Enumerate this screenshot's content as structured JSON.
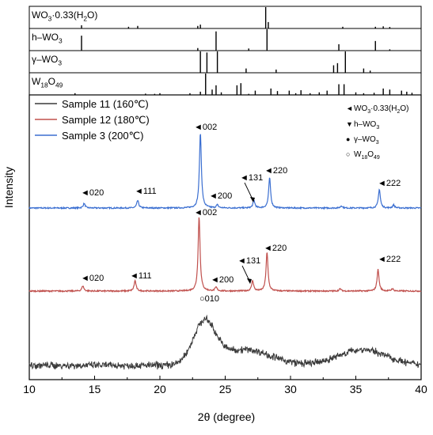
{
  "chart_data": {
    "type": "line",
    "xlabel": "2θ (degree)",
    "ylabel": "Intensity",
    "xlim": [
      10,
      40
    ],
    "x_ticks": [
      "10",
      "15",
      "20",
      "25",
      "30",
      "35",
      "40"
    ],
    "y_ticks_shown": false,
    "reference_panels": [
      {
        "label": "WO3·0.33(H2O)",
        "label_main": "WO",
        "label_sub1": "3",
        "label_tail": "·0.33(H",
        "label_sub2": "2",
        "label_end": "O)",
        "peaks": [
          [
            14.0,
            0.15
          ],
          [
            17.6,
            0.08
          ],
          [
            18.3,
            0.12
          ],
          [
            22.9,
            0.12
          ],
          [
            23.1,
            0.18
          ],
          [
            28.1,
            1.0
          ],
          [
            28.3,
            0.3
          ],
          [
            34.0,
            0.08
          ],
          [
            36.5,
            0.08
          ],
          [
            37.1,
            0.1
          ],
          [
            37.6,
            0.07
          ]
        ]
      },
      {
        "label": "h–WO3",
        "label_main": "h–WO",
        "label_sub1": "3",
        "peaks": [
          [
            14.0,
            0.7
          ],
          [
            22.9,
            0.12
          ],
          [
            24.3,
            0.9
          ],
          [
            26.8,
            0.1
          ],
          [
            28.2,
            1.0
          ],
          [
            33.7,
            0.3
          ],
          [
            36.5,
            0.45
          ],
          [
            37.6,
            0.06
          ]
        ]
      },
      {
        "label": "γ–WO3",
        "label_main": "γ–WO",
        "label_sub1": "3",
        "peaks": [
          [
            23.1,
            1.0
          ],
          [
            23.6,
            0.95
          ],
          [
            24.4,
            1.0
          ],
          [
            26.6,
            0.2
          ],
          [
            28.9,
            0.15
          ],
          [
            33.3,
            0.35
          ],
          [
            33.6,
            0.45
          ],
          [
            34.2,
            1.0
          ],
          [
            35.6,
            0.2
          ],
          [
            36.1,
            0.1
          ],
          [
            41.4,
            0.1
          ]
        ]
      },
      {
        "label": "W18O49",
        "label_main": "W",
        "label_sub1": "18",
        "label_tail": "O",
        "label_sub2": "49",
        "peaks": [
          [
            13.5,
            0.08
          ],
          [
            18.9,
            0.06
          ],
          [
            19.6,
            0.05
          ],
          [
            20.0,
            0.08
          ],
          [
            22.3,
            0.08
          ],
          [
            23.1,
            0.15
          ],
          [
            23.5,
            1.0
          ],
          [
            24.0,
            0.25
          ],
          [
            24.3,
            0.45
          ],
          [
            24.7,
            0.12
          ],
          [
            25.9,
            0.45
          ],
          [
            26.2,
            0.55
          ],
          [
            26.8,
            0.05
          ],
          [
            27.3,
            0.2
          ],
          [
            28.5,
            0.3
          ],
          [
            29.0,
            0.18
          ],
          [
            29.9,
            0.2
          ],
          [
            30.4,
            0.08
          ],
          [
            30.8,
            0.22
          ],
          [
            31.5,
            0.08
          ],
          [
            32.2,
            0.12
          ],
          [
            32.8,
            0.2
          ],
          [
            33.7,
            0.5
          ],
          [
            34.1,
            0.5
          ],
          [
            35.0,
            0.12
          ],
          [
            35.6,
            0.08
          ],
          [
            36.4,
            0.1
          ],
          [
            37.1,
            0.3
          ],
          [
            37.6,
            0.25
          ],
          [
            38.5,
            0.2
          ],
          [
            38.9,
            0.15
          ],
          [
            39.3,
            0.1
          ]
        ]
      }
    ],
    "series": [
      {
        "name": "Sample 11 (160℃)",
        "color": "#3a3a3a",
        "style": "amorphous",
        "hump_peak_x": 23.4,
        "second_hump_x": 35.5
      },
      {
        "name": "Sample 12 (180℃)",
        "color": "#c0504d",
        "peaks": [
          [
            14.1,
            0.07
          ],
          [
            18.1,
            0.14
          ],
          [
            23.0,
            1.0
          ],
          [
            24.3,
            0.05
          ],
          [
            27.1,
            0.14
          ],
          [
            28.2,
            0.52
          ],
          [
            33.8,
            0.03
          ],
          [
            36.7,
            0.29
          ],
          [
            37.8,
            0.03
          ]
        ]
      },
      {
        "name": "Sample 3 (200℃)",
        "color": "#3b6fd1",
        "peaks": [
          [
            14.2,
            0.06
          ],
          [
            18.3,
            0.1
          ],
          [
            23.1,
            1.0
          ],
          [
            24.4,
            0.04
          ],
          [
            27.2,
            0.1
          ],
          [
            28.4,
            0.4
          ],
          [
            33.9,
            0.03
          ],
          [
            36.8,
            0.25
          ],
          [
            37.9,
            0.04
          ]
        ]
      }
    ],
    "peak_annotations": {
      "sample3": [
        {
          "label": "020",
          "x": 14.2
        },
        {
          "label": "111",
          "x": 18.3
        },
        {
          "label": "002",
          "x": 23.1
        },
        {
          "label": "200",
          "x": 24.4
        },
        {
          "label": "131",
          "x": 27.2
        },
        {
          "label": "220",
          "x": 28.4
        },
        {
          "label": "222",
          "x": 36.8
        }
      ],
      "sample12": [
        {
          "label": "020",
          "x": 14.1
        },
        {
          "label": "111",
          "x": 18.1
        },
        {
          "label": "002",
          "x": 23.0
        },
        {
          "label": "200",
          "x": 24.3
        },
        {
          "label": "131",
          "x": 27.1
        },
        {
          "label": "220",
          "x": 28.2
        },
        {
          "label": "222",
          "x": 36.7
        }
      ],
      "sample11": [
        {
          "label": "010",
          "x": 23.4
        }
      ]
    },
    "legend": {
      "placement": "top-left",
      "entries": [
        "Sample 11 (160℃)",
        "Sample 12 (180℃)",
        "Sample 3 (200℃)"
      ]
    },
    "marker_legend": {
      "placement": "top-right",
      "entries": [
        {
          "symbol": "◄",
          "main": "WO",
          "sub": "3",
          "tail": "·0.33(H",
          "sub2": "2",
          "end": "O)"
        },
        {
          "symbol": "▼",
          "main": "h–WO",
          "sub": "3"
        },
        {
          "symbol": "●",
          "main": "γ–WO",
          "sub": "3"
        },
        {
          "symbol": "○",
          "main": "W",
          "sub": "18",
          "tail": "O",
          "sub2": "49"
        }
      ]
    }
  }
}
